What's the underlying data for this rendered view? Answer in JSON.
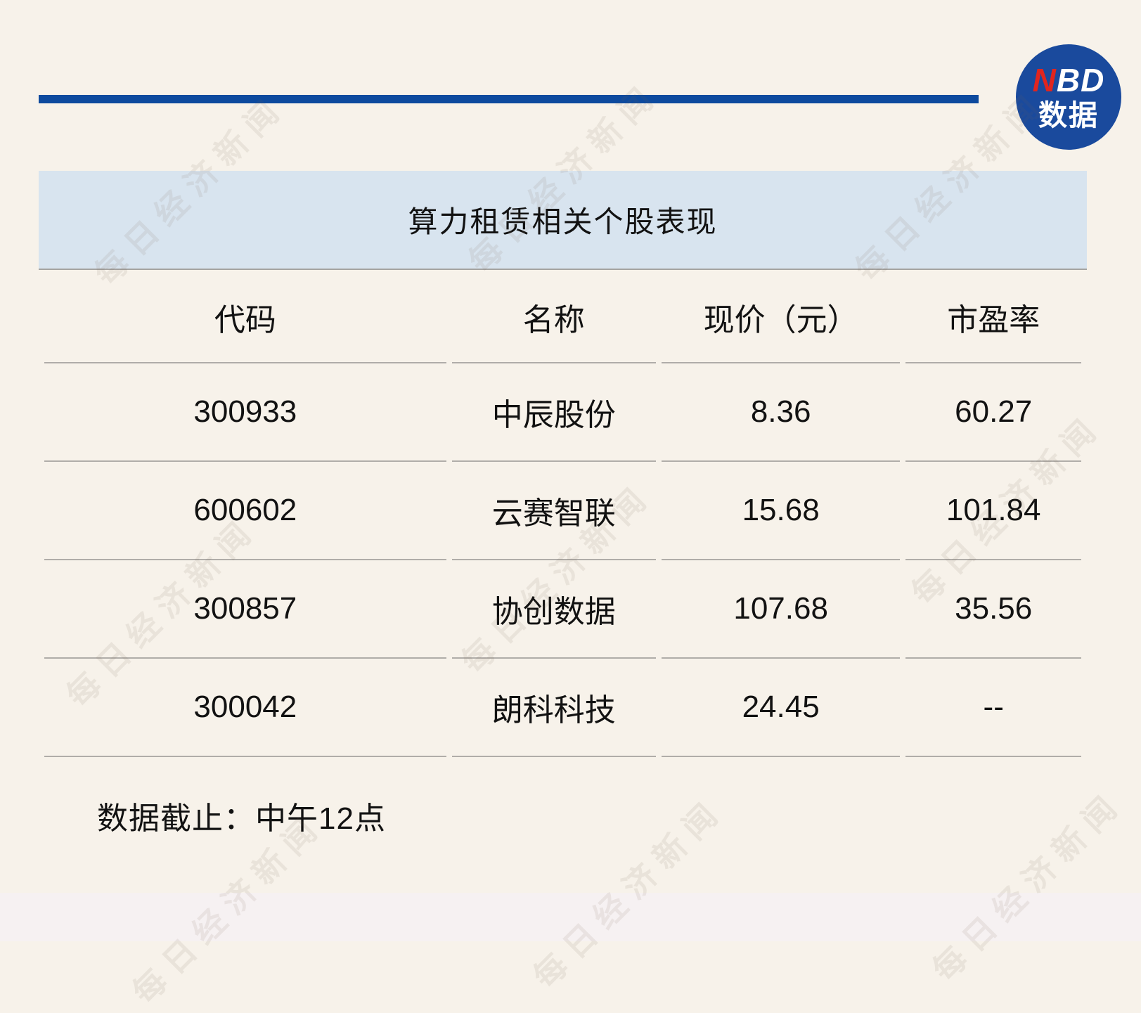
{
  "brand": {
    "nbd_red": "N",
    "nbd_rest": "BD",
    "subtitle": "数据"
  },
  "title": "算力租赁相关个股表现",
  "table": {
    "headers": [
      "代码",
      "名称",
      "现价（元）",
      "市盈率"
    ],
    "rows": [
      [
        "300933",
        "中辰股份",
        "8.36",
        "60.27"
      ],
      [
        "600602",
        "云赛智联",
        "15.68",
        "101.84"
      ],
      [
        "300857",
        "协创数据",
        "107.68",
        "35.56"
      ],
      [
        "300042",
        "朗科科技",
        "24.45",
        "--"
      ]
    ]
  },
  "footer_note": "数据截止：中午12点",
  "watermark_text": "每日经济新闻",
  "colors": {
    "accent_blue": "#0d4a9e",
    "logo_blue": "#1a4a9d",
    "logo_red": "#e0251f",
    "title_band_blue": "#d8e4ef",
    "background": "#f7f2ea",
    "divider_gray": "#b0ada9"
  }
}
